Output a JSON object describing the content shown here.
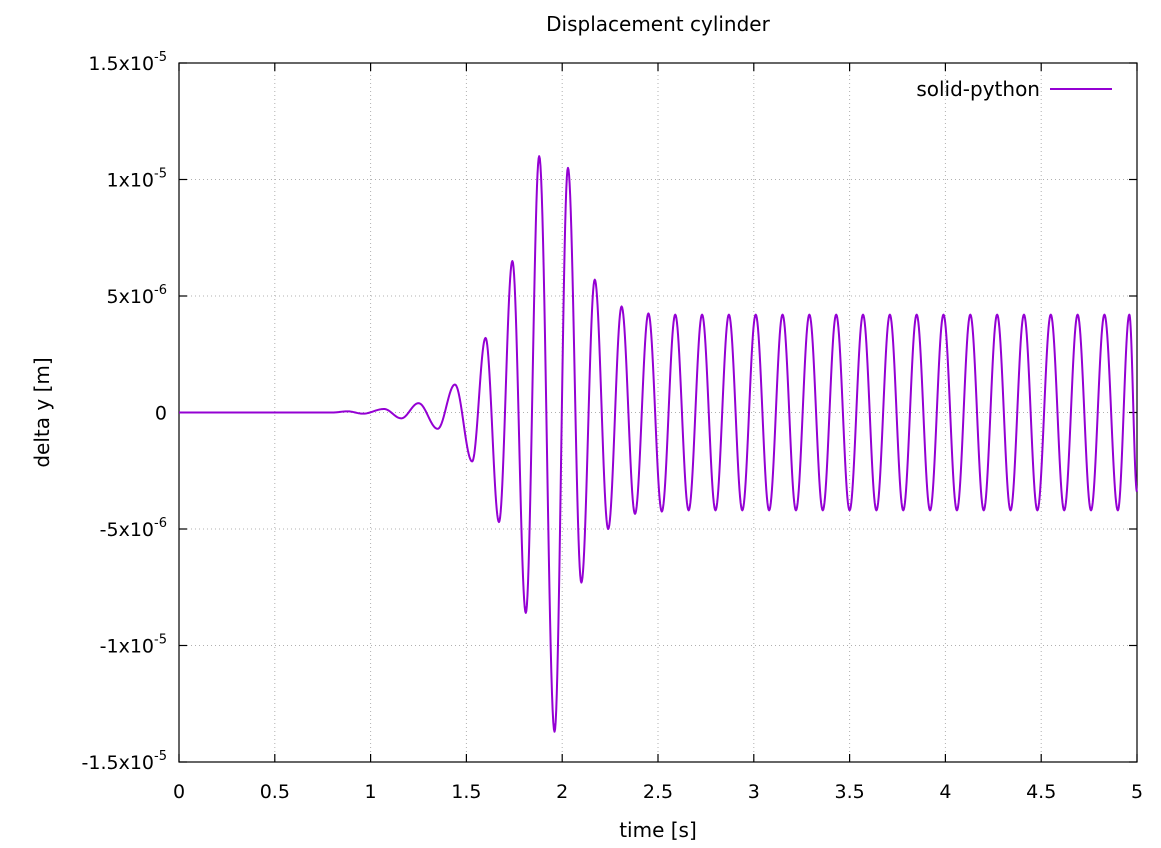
{
  "chart_data": {
    "type": "line",
    "title": "Displacement cylinder",
    "xlabel": "time [s]",
    "ylabel": "delta y [m]",
    "xlim": [
      0,
      5
    ],
    "ylim": [
      -1.5e-05,
      1.5e-05
    ],
    "grid": true,
    "legend_position": "top-right",
    "x_ticks": [
      {
        "value": 0,
        "label": "0"
      },
      {
        "value": 0.5,
        "label": "0.5"
      },
      {
        "value": 1,
        "label": "1"
      },
      {
        "value": 1.5,
        "label": "1.5"
      },
      {
        "value": 2,
        "label": "2"
      },
      {
        "value": 2.5,
        "label": "2.5"
      },
      {
        "value": 3,
        "label": "3"
      },
      {
        "value": 3.5,
        "label": "3.5"
      },
      {
        "value": 4,
        "label": "4"
      },
      {
        "value": 4.5,
        "label": "4.5"
      },
      {
        "value": 5,
        "label": "5"
      }
    ],
    "y_ticks": [
      {
        "value": 1.5e-05,
        "mant": "1.5x10",
        "exp": "-5"
      },
      {
        "value": 1e-05,
        "mant": "1x10",
        "exp": "-5"
      },
      {
        "value": 5e-06,
        "mant": "5x10",
        "exp": "-6"
      },
      {
        "value": 0,
        "mant": "0",
        "exp": ""
      },
      {
        "value": -5e-06,
        "mant": "-5x10",
        "exp": "-6"
      },
      {
        "value": -1e-05,
        "mant": "-1x10",
        "exp": "-5"
      },
      {
        "value": -1.5e-05,
        "mant": "-1.5x10",
        "exp": "-5"
      }
    ],
    "series": [
      {
        "name": "solid-python",
        "color": "#9400d3",
        "extrema": [
          [
            0,
            0
          ],
          [
            0.8,
            0
          ],
          [
            0.88,
            5e-08
          ],
          [
            0.96,
            -5e-08
          ],
          [
            1.07,
            1.5e-07
          ],
          [
            1.16,
            -2.5e-07
          ],
          [
            1.25,
            4e-07
          ],
          [
            1.35,
            -7e-07
          ],
          [
            1.44,
            1.2e-06
          ],
          [
            1.53,
            -2.1e-06
          ],
          [
            1.6,
            3.2e-06
          ],
          [
            1.67,
            -4.7e-06
          ],
          [
            1.74,
            6.5e-06
          ],
          [
            1.81,
            -8.6e-06
          ],
          [
            1.88,
            1.1e-05
          ],
          [
            1.96,
            -1.37e-05
          ],
          [
            2.03,
            1.05e-05
          ],
          [
            2.1,
            -7.3e-06
          ],
          [
            2.17,
            5.7e-06
          ],
          [
            2.24,
            -5e-06
          ],
          [
            2.31,
            4.55e-06
          ],
          [
            2.38,
            -4.35e-06
          ],
          [
            2.45,
            4.25e-06
          ],
          [
            2.52,
            -4.25e-06
          ],
          [
            2.59,
            4.2e-06
          ],
          [
            2.66,
            -4.2e-06
          ],
          [
            2.73,
            4.2e-06
          ],
          [
            2.8,
            -4.2e-06
          ],
          [
            2.87,
            4.2e-06
          ],
          [
            2.94,
            -4.2e-06
          ],
          [
            3.01,
            4.2e-06
          ],
          [
            3.08,
            -4.2e-06
          ],
          [
            3.15,
            4.2e-06
          ],
          [
            3.22,
            -4.2e-06
          ],
          [
            3.29,
            4.2e-06
          ],
          [
            3.36,
            -4.2e-06
          ],
          [
            3.43,
            4.2e-06
          ],
          [
            3.5,
            -4.2e-06
          ],
          [
            3.57,
            4.2e-06
          ],
          [
            3.64,
            -4.2e-06
          ],
          [
            3.71,
            4.2e-06
          ],
          [
            3.78,
            -4.2e-06
          ],
          [
            3.85,
            4.2e-06
          ],
          [
            3.92,
            -4.2e-06
          ],
          [
            3.99,
            4.2e-06
          ],
          [
            4.06,
            -4.2e-06
          ],
          [
            4.13,
            4.2e-06
          ],
          [
            4.2,
            -4.2e-06
          ],
          [
            4.27,
            4.2e-06
          ],
          [
            4.34,
            -4.2e-06
          ],
          [
            4.41,
            4.2e-06
          ],
          [
            4.48,
            -4.2e-06
          ],
          [
            4.55,
            4.2e-06
          ],
          [
            4.62,
            -4.2e-06
          ],
          [
            4.69,
            4.2e-06
          ],
          [
            4.76,
            -4.2e-06
          ],
          [
            4.83,
            4.2e-06
          ],
          [
            4.9,
            -4.2e-06
          ],
          [
            4.96,
            4.2e-06
          ],
          [
            5.0,
            -3.4e-06
          ]
        ]
      }
    ]
  }
}
